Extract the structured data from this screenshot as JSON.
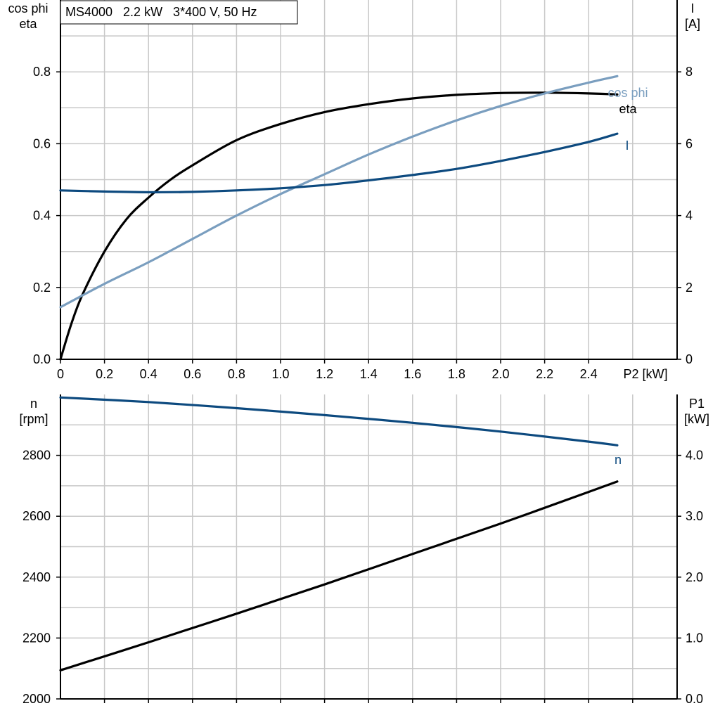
{
  "title": "MS4000   2.2 kW   3*400 V, 50 Hz",
  "colors": {
    "eta": "#000000",
    "cos_phi": "#7a9ebf",
    "I": "#0d4a7f",
    "n": "#0d4a7f",
    "P1": "#000000",
    "grid": "#c8c8c8"
  },
  "chart_data": [
    {
      "type": "line",
      "x_label": "P2 [kW]",
      "xlim": [
        0,
        2.8
      ],
      "x_ticks": [
        "0",
        "0.2",
        "0.4",
        "0.6",
        "0.8",
        "1.0",
        "1.2",
        "1.4",
        "1.6",
        "1.8",
        "2.0",
        "2.2",
        "2.4"
      ],
      "y_left_label": [
        "cos phi",
        "eta"
      ],
      "y_left_lim": [
        0,
        1.0
      ],
      "y_left_ticks": [
        "0.0",
        "0.2",
        "0.4",
        "0.6",
        "0.8"
      ],
      "y_right_label": [
        "I",
        "[A]"
      ],
      "y_right_lim": [
        0,
        10
      ],
      "y_right_ticks": [
        "0",
        "2",
        "4",
        "6",
        "8"
      ],
      "grid": true,
      "series": [
        {
          "key": "eta",
          "name": "eta",
          "axis": "left",
          "x": [
            0,
            0.05,
            0.1,
            0.2,
            0.3,
            0.4,
            0.5,
            0.6,
            0.8,
            1.0,
            1.2,
            1.4,
            1.6,
            1.8,
            2.0,
            2.2,
            2.4,
            2.53
          ],
          "y": [
            0.0,
            0.1,
            0.18,
            0.3,
            0.39,
            0.45,
            0.5,
            0.54,
            0.61,
            0.655,
            0.688,
            0.71,
            0.726,
            0.736,
            0.741,
            0.742,
            0.74,
            0.737
          ]
        },
        {
          "key": "cos_phi",
          "name": "cos phi",
          "axis": "left",
          "x": [
            0,
            0.2,
            0.4,
            0.6,
            0.8,
            1.0,
            1.2,
            1.4,
            1.6,
            1.8,
            2.0,
            2.2,
            2.4,
            2.53
          ],
          "y": [
            0.145,
            0.21,
            0.27,
            0.335,
            0.4,
            0.46,
            0.515,
            0.57,
            0.62,
            0.665,
            0.705,
            0.74,
            0.77,
            0.788
          ]
        },
        {
          "key": "I",
          "name": "I",
          "axis": "right",
          "x": [
            0,
            0.2,
            0.4,
            0.6,
            0.8,
            1.0,
            1.2,
            1.4,
            1.6,
            1.8,
            2.0,
            2.2,
            2.4,
            2.53
          ],
          "y": [
            4.7,
            4.67,
            4.65,
            4.66,
            4.7,
            4.76,
            4.85,
            4.98,
            5.13,
            5.3,
            5.52,
            5.77,
            6.05,
            6.28
          ]
        }
      ]
    },
    {
      "type": "line",
      "xlim": [
        0,
        2.8
      ],
      "y_left_label": [
        "n",
        "[rpm]"
      ],
      "y_left_lim": [
        2000,
        3000
      ],
      "y_left_ticks": [
        "2000",
        "2200",
        "2400",
        "2600",
        "2800"
      ],
      "y_right_label": [
        "P1",
        "[kW]"
      ],
      "y_right_lim": [
        0,
        5.0
      ],
      "y_right_ticks": [
        "0.0",
        "1.0",
        "2.0",
        "3.0",
        "4.0"
      ],
      "grid": true,
      "series": [
        {
          "key": "n",
          "name": "n",
          "axis": "left",
          "x": [
            0,
            0.4,
            0.8,
            1.2,
            1.6,
            2.0,
            2.4,
            2.53
          ],
          "y": [
            2990,
            2975,
            2955,
            2932,
            2907,
            2878,
            2845,
            2833
          ]
        },
        {
          "key": "P1",
          "name": "",
          "axis": "right",
          "x": [
            0,
            0.4,
            0.8,
            1.2,
            1.6,
            2.0,
            2.4,
            2.53
          ],
          "y": [
            0.47,
            0.93,
            1.4,
            1.88,
            2.38,
            2.88,
            3.4,
            3.57
          ]
        }
      ]
    }
  ]
}
